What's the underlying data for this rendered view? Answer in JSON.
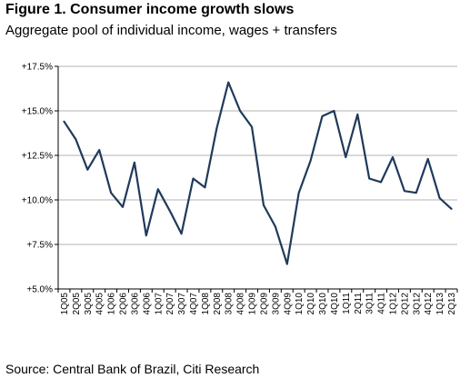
{
  "header": {
    "title": "Figure 1. Consumer income growth slows",
    "subtitle": "Aggregate pool of individual income, wages + transfers"
  },
  "footer": {
    "source": "Source: Central Bank of Brazil, Citi Research"
  },
  "chart_data": {
    "type": "line",
    "title": "Figure 1. Consumer income growth slows",
    "subtitle": "Aggregate pool of individual income, wages + transfers",
    "xlabel": "",
    "ylabel": "",
    "ylim": [
      5.0,
      17.5
    ],
    "yticks": [
      5.0,
      7.5,
      10.0,
      12.5,
      15.0,
      17.5
    ],
    "ytick_labels": [
      "+5.0%",
      "+7.5%",
      "+10.0%",
      "+12.5%",
      "+15.0%",
      "+17.5%"
    ],
    "grid": true,
    "legend": "none",
    "line_color": "#1f3a5a",
    "categories": [
      "1Q05",
      "2Q05",
      "3Q05",
      "4Q05",
      "1Q06",
      "2Q06",
      "3Q06",
      "4Q06",
      "1Q07",
      "2Q07",
      "3Q07",
      "4Q07",
      "1Q08",
      "2Q08",
      "3Q08",
      "4Q08",
      "1Q09",
      "2Q09",
      "3Q09",
      "4Q09",
      "1Q10",
      "2Q10",
      "3Q10",
      "4Q10",
      "1Q11",
      "2Q11",
      "3Q11",
      "4Q11",
      "1Q12",
      "2Q12",
      "3Q12",
      "4Q12",
      "1Q13",
      "2Q13"
    ],
    "series": [
      {
        "values": [
          14.4,
          13.4,
          11.7,
          12.8,
          10.4,
          9.6,
          12.1,
          8.0,
          10.6,
          9.4,
          8.1,
          11.2,
          10.7,
          14.0,
          16.6,
          15.0,
          14.1,
          9.7,
          8.5,
          6.4,
          10.4,
          12.2,
          14.7,
          15.0,
          12.4,
          14.8,
          11.2,
          11.0,
          12.4,
          10.5,
          10.4,
          12.3,
          10.1,
          9.5
        ]
      }
    ]
  }
}
